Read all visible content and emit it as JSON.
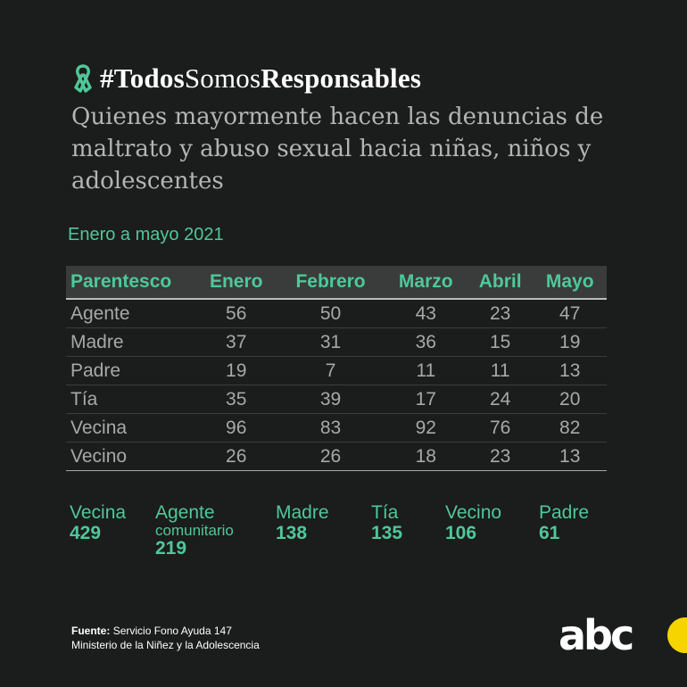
{
  "hashtag": {
    "part1": "#Todos",
    "part2": "Somos",
    "part3": "Responsables"
  },
  "subtitle": "Quienes mayormente hacen las denuncias de maltrato y abuso sexual hacia niñas, niños y adolescentes",
  "period": "Enero a mayo 2021",
  "chart_data": {
    "type": "table",
    "columns": [
      "Parentesco",
      "Enero",
      "Febrero",
      "Marzo",
      "Abril",
      "Mayo"
    ],
    "rows": [
      [
        "Agente",
        56,
        50,
        43,
        23,
        47
      ],
      [
        "Madre",
        37,
        31,
        36,
        15,
        19
      ],
      [
        "Padre",
        19,
        7,
        11,
        11,
        13
      ],
      [
        "Tía",
        35,
        39,
        17,
        24,
        20
      ],
      [
        "Vecina",
        96,
        83,
        92,
        76,
        82
      ],
      [
        "Vecino",
        26,
        26,
        18,
        23,
        13
      ]
    ]
  },
  "totals": [
    {
      "label": "Vecina",
      "sub": "",
      "value": "429"
    },
    {
      "label": "Agente",
      "sub": "comunitario",
      "value": "219"
    },
    {
      "label": "Madre",
      "sub": "",
      "value": "138"
    },
    {
      "label": "Tía",
      "sub": "",
      "value": "135"
    },
    {
      "label": "Vecino",
      "sub": "",
      "value": "106"
    },
    {
      "label": "Padre",
      "sub": "",
      "value": "61"
    }
  ],
  "source": {
    "label": "Fuente:",
    "line1": "Servicio Fono Ayuda 147",
    "line2": "Ministerio de la Niñez y la Adolescencia"
  },
  "logo": {
    "text": "abc"
  },
  "colors": {
    "background": "#1b1c1c",
    "accent": "#4ec89a",
    "header_bg": "#3a3b3b",
    "text_muted": "#a8a8a8",
    "logo_yellow": "#f5d400"
  },
  "icons": {
    "ribbon": "green-ribbon-icon"
  }
}
